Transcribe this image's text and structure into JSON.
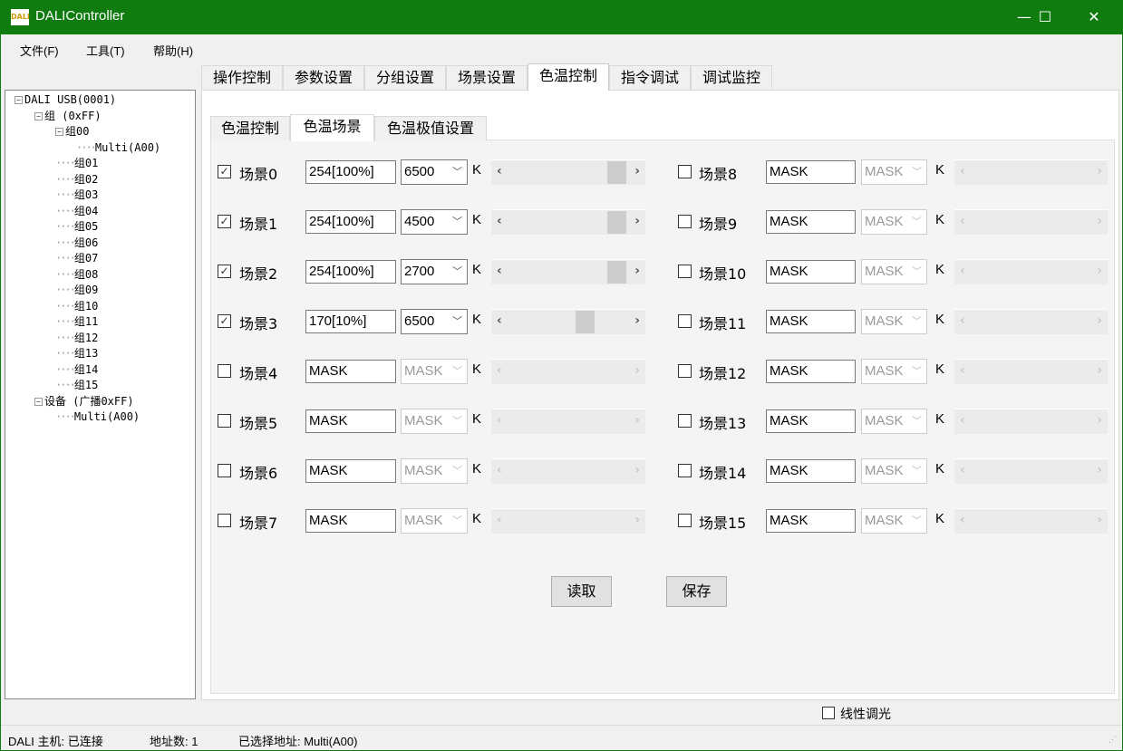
{
  "window": {
    "title": "DALIController",
    "icon": "dali-logo-icon",
    "accent": "#107c10"
  },
  "menu": [
    "文件(F)",
    "工具(T)",
    "帮助(H)"
  ],
  "tree": [
    {
      "label": "DALI USB(0001)",
      "level": 0,
      "expander": "minus"
    },
    {
      "label": "组 (0xFF)",
      "level": 1,
      "expander": "minus"
    },
    {
      "label": "组00",
      "level": 2,
      "expander": "minus"
    },
    {
      "label": "Multi(A00)",
      "level": 3
    },
    {
      "label": "组01",
      "level": 2
    },
    {
      "label": "组02",
      "level": 2
    },
    {
      "label": "组03",
      "level": 2
    },
    {
      "label": "组04",
      "level": 2
    },
    {
      "label": "组05",
      "level": 2
    },
    {
      "label": "组06",
      "level": 2
    },
    {
      "label": "组07",
      "level": 2
    },
    {
      "label": "组08",
      "level": 2
    },
    {
      "label": "组09",
      "level": 2
    },
    {
      "label": "组10",
      "level": 2
    },
    {
      "label": "组11",
      "level": 2
    },
    {
      "label": "组12",
      "level": 2
    },
    {
      "label": "组13",
      "level": 2
    },
    {
      "label": "组14",
      "level": 2
    },
    {
      "label": "组15",
      "level": 2
    },
    {
      "label": "设备 (广播0xFF)",
      "level": 1,
      "expander": "minus"
    },
    {
      "label": "Multi(A00)",
      "level": 2
    }
  ],
  "tabs": [
    "操作控制",
    "参数设置",
    "分组设置",
    "场景设置",
    "色温控制",
    "指令调试",
    "调试监控"
  ],
  "active_tab": 4,
  "inner_tabs": [
    "色温控制",
    "色温场景",
    "色温极值设置"
  ],
  "active_inner_tab": 1,
  "unit_label": "K",
  "scenes": [
    {
      "label": "场景0",
      "checked": true,
      "level": "254[100%]",
      "cct": "6500",
      "slider": 1.0
    },
    {
      "label": "场景1",
      "checked": true,
      "level": "254[100%]",
      "cct": "4500",
      "slider": 1.0
    },
    {
      "label": "场景2",
      "checked": true,
      "level": "254[100%]",
      "cct": "2700",
      "slider": 1.0
    },
    {
      "label": "场景3",
      "checked": true,
      "level": "170[10%]",
      "cct": "6500",
      "slider": 0.68
    },
    {
      "label": "场景4",
      "checked": false,
      "level": "MASK",
      "cct": "MASK"
    },
    {
      "label": "场景5",
      "checked": false,
      "level": "MASK",
      "cct": "MASK"
    },
    {
      "label": "场景6",
      "checked": false,
      "level": "MASK",
      "cct": "MASK"
    },
    {
      "label": "场景7",
      "checked": false,
      "level": "MASK",
      "cct": "MASK"
    },
    {
      "label": "场景8",
      "checked": false,
      "level": "MASK",
      "cct": "MASK"
    },
    {
      "label": "场景9",
      "checked": false,
      "level": "MASK",
      "cct": "MASK"
    },
    {
      "label": "场景10",
      "checked": false,
      "level": "MASK",
      "cct": "MASK"
    },
    {
      "label": "场景11",
      "checked": false,
      "level": "MASK",
      "cct": "MASK"
    },
    {
      "label": "场景12",
      "checked": false,
      "level": "MASK",
      "cct": "MASK"
    },
    {
      "label": "场景13",
      "checked": false,
      "level": "MASK",
      "cct": "MASK"
    },
    {
      "label": "场景14",
      "checked": false,
      "level": "MASK",
      "cct": "MASK"
    },
    {
      "label": "场景15",
      "checked": false,
      "level": "MASK",
      "cct": "MASK"
    }
  ],
  "buttons": {
    "read": "读取",
    "save": "保存"
  },
  "linear_dimming": {
    "label": "线性调光",
    "checked": false
  },
  "status": {
    "host": "DALI 主机: 已连接",
    "count": "地址数: 1",
    "selected": "已选择地址: Multi(A00)"
  }
}
